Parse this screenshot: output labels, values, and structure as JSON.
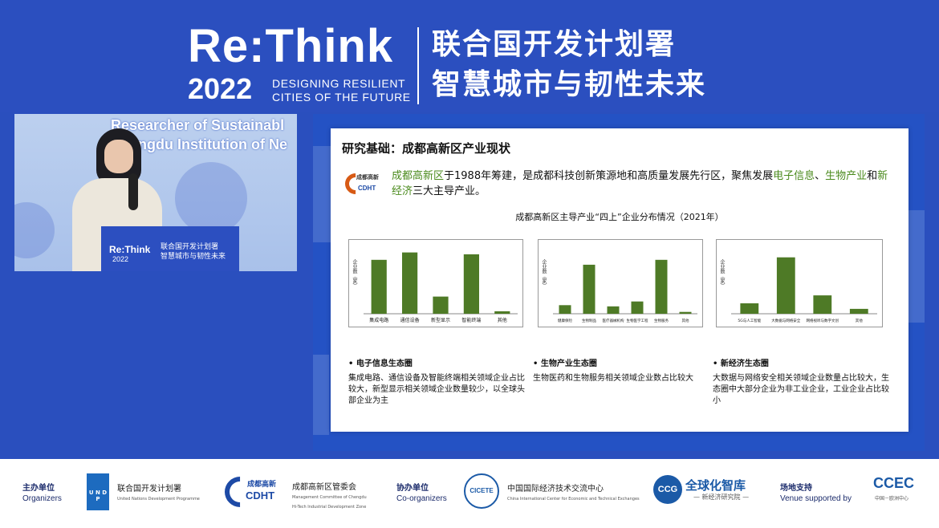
{
  "header": {
    "brand": "Re:Think",
    "year": "2022",
    "tagline_line1": "DESIGNING RESILIENT",
    "tagline_line2": "CITIES OF THE FUTURE",
    "cn_line1": "联合国开发计划署",
    "cn_line2": "智慧城市与韧性未来"
  },
  "video": {
    "bg_text_line1": "Researcher of Sustainabl",
    "bg_text_line2": "Chengdu Institution of Ne",
    "podium_brand": "Re:Think",
    "podium_year": "2022",
    "podium_cn1": "联合国开发计划署",
    "podium_cn2": "智慧城市与韧性未来"
  },
  "slide": {
    "title": "研究基础：成都高新区产业现状",
    "logo_text_cn": "成都高新",
    "logo_text_en": "CDHT",
    "intro": {
      "g1": "成都高新区",
      "t1": "于1988年筹建，是成都科技创新策源地和高质量发展先行区，聚焦发展",
      "g2": "电子信息",
      "t2": "、",
      "g3": "生物产业",
      "t3": "和",
      "g4": "新经济",
      "t4": "三大主导产业。"
    },
    "chart_title": "成都高新区主导产业“四上”企业分布情况（2021年）",
    "ecosystems": [
      {
        "heading": "电子信息生态圈",
        "desc": "集成电路、通信设备及智能终端相关领域企业占比较大，新型显示相关领域企业数量较少，以全球头部企业为主"
      },
      {
        "heading": "生物产业生态圈",
        "desc": "生物医药和生物服务相关领域企业数占比较大"
      },
      {
        "heading": "新经济生态圈",
        "desc": "大数据与网络安全相关领域企业数量占比较大，生态圈中大部分企业为非工业企业，工业企业占比较小"
      }
    ]
  },
  "chart_data": [
    {
      "type": "bar",
      "ylabel": "企业数（家）",
      "categories": [
        "集成电路",
        "通信设备",
        "新型显示",
        "智能终端",
        "其他"
      ],
      "values": [
        88,
        100,
        28,
        97,
        4
      ],
      "ylim": [
        0,
        110
      ],
      "color": "#4e7a26"
    },
    {
      "type": "bar",
      "ylabel": "企业数（家）",
      "categories": [
        "健康保险",
        "生物制品",
        "医疗器械机构",
        "生物医学工程",
        "生物服务",
        "其他"
      ],
      "values": [
        14,
        80,
        12,
        20,
        88,
        3
      ],
      "ylim": [
        0,
        110
      ],
      "color": "#4e7a26"
    },
    {
      "type": "bar",
      "ylabel": "企业数（家）",
      "categories": [
        "5G与人工智能",
        "大数据与网络安全",
        "网络视听与数字文创",
        "其他"
      ],
      "values": [
        17,
        92,
        30,
        8
      ],
      "ylim": [
        0,
        110
      ],
      "color": "#4e7a26"
    }
  ],
  "footer": {
    "organizers_cn": "主办单位",
    "organizers_en": "Organizers",
    "undp_logo": "U N D P",
    "undp_cn": "联合国开发计划署",
    "undp_en": "United Nations Development Programme",
    "cdht_logo_cn": "成都高新",
    "cdht_logo_en": "CDHT",
    "cdht_cn": "成都高新区管委会",
    "cdht_en_1": "Management Committee of Chengdu",
    "cdht_en_2": "Hi-Tech Industrial Development Zone",
    "coorg_cn": "协办单位",
    "coorg_en": "Co-organizers",
    "cicete_logo": "CICETE",
    "cicete_cn": "中国国际经济技术交流中心",
    "cicete_en": "China International Center for Economic and Technical Exchanges",
    "ccg_logo": "CCG",
    "ccg_cn": "全球化智库",
    "ccg_sub": "— 新经济研究院 —",
    "venue_cn": "场地支持",
    "venue_en": "Venue supported by",
    "ccec_logo": "CCEC",
    "ccec_sub": "中国－欧洲中心"
  }
}
